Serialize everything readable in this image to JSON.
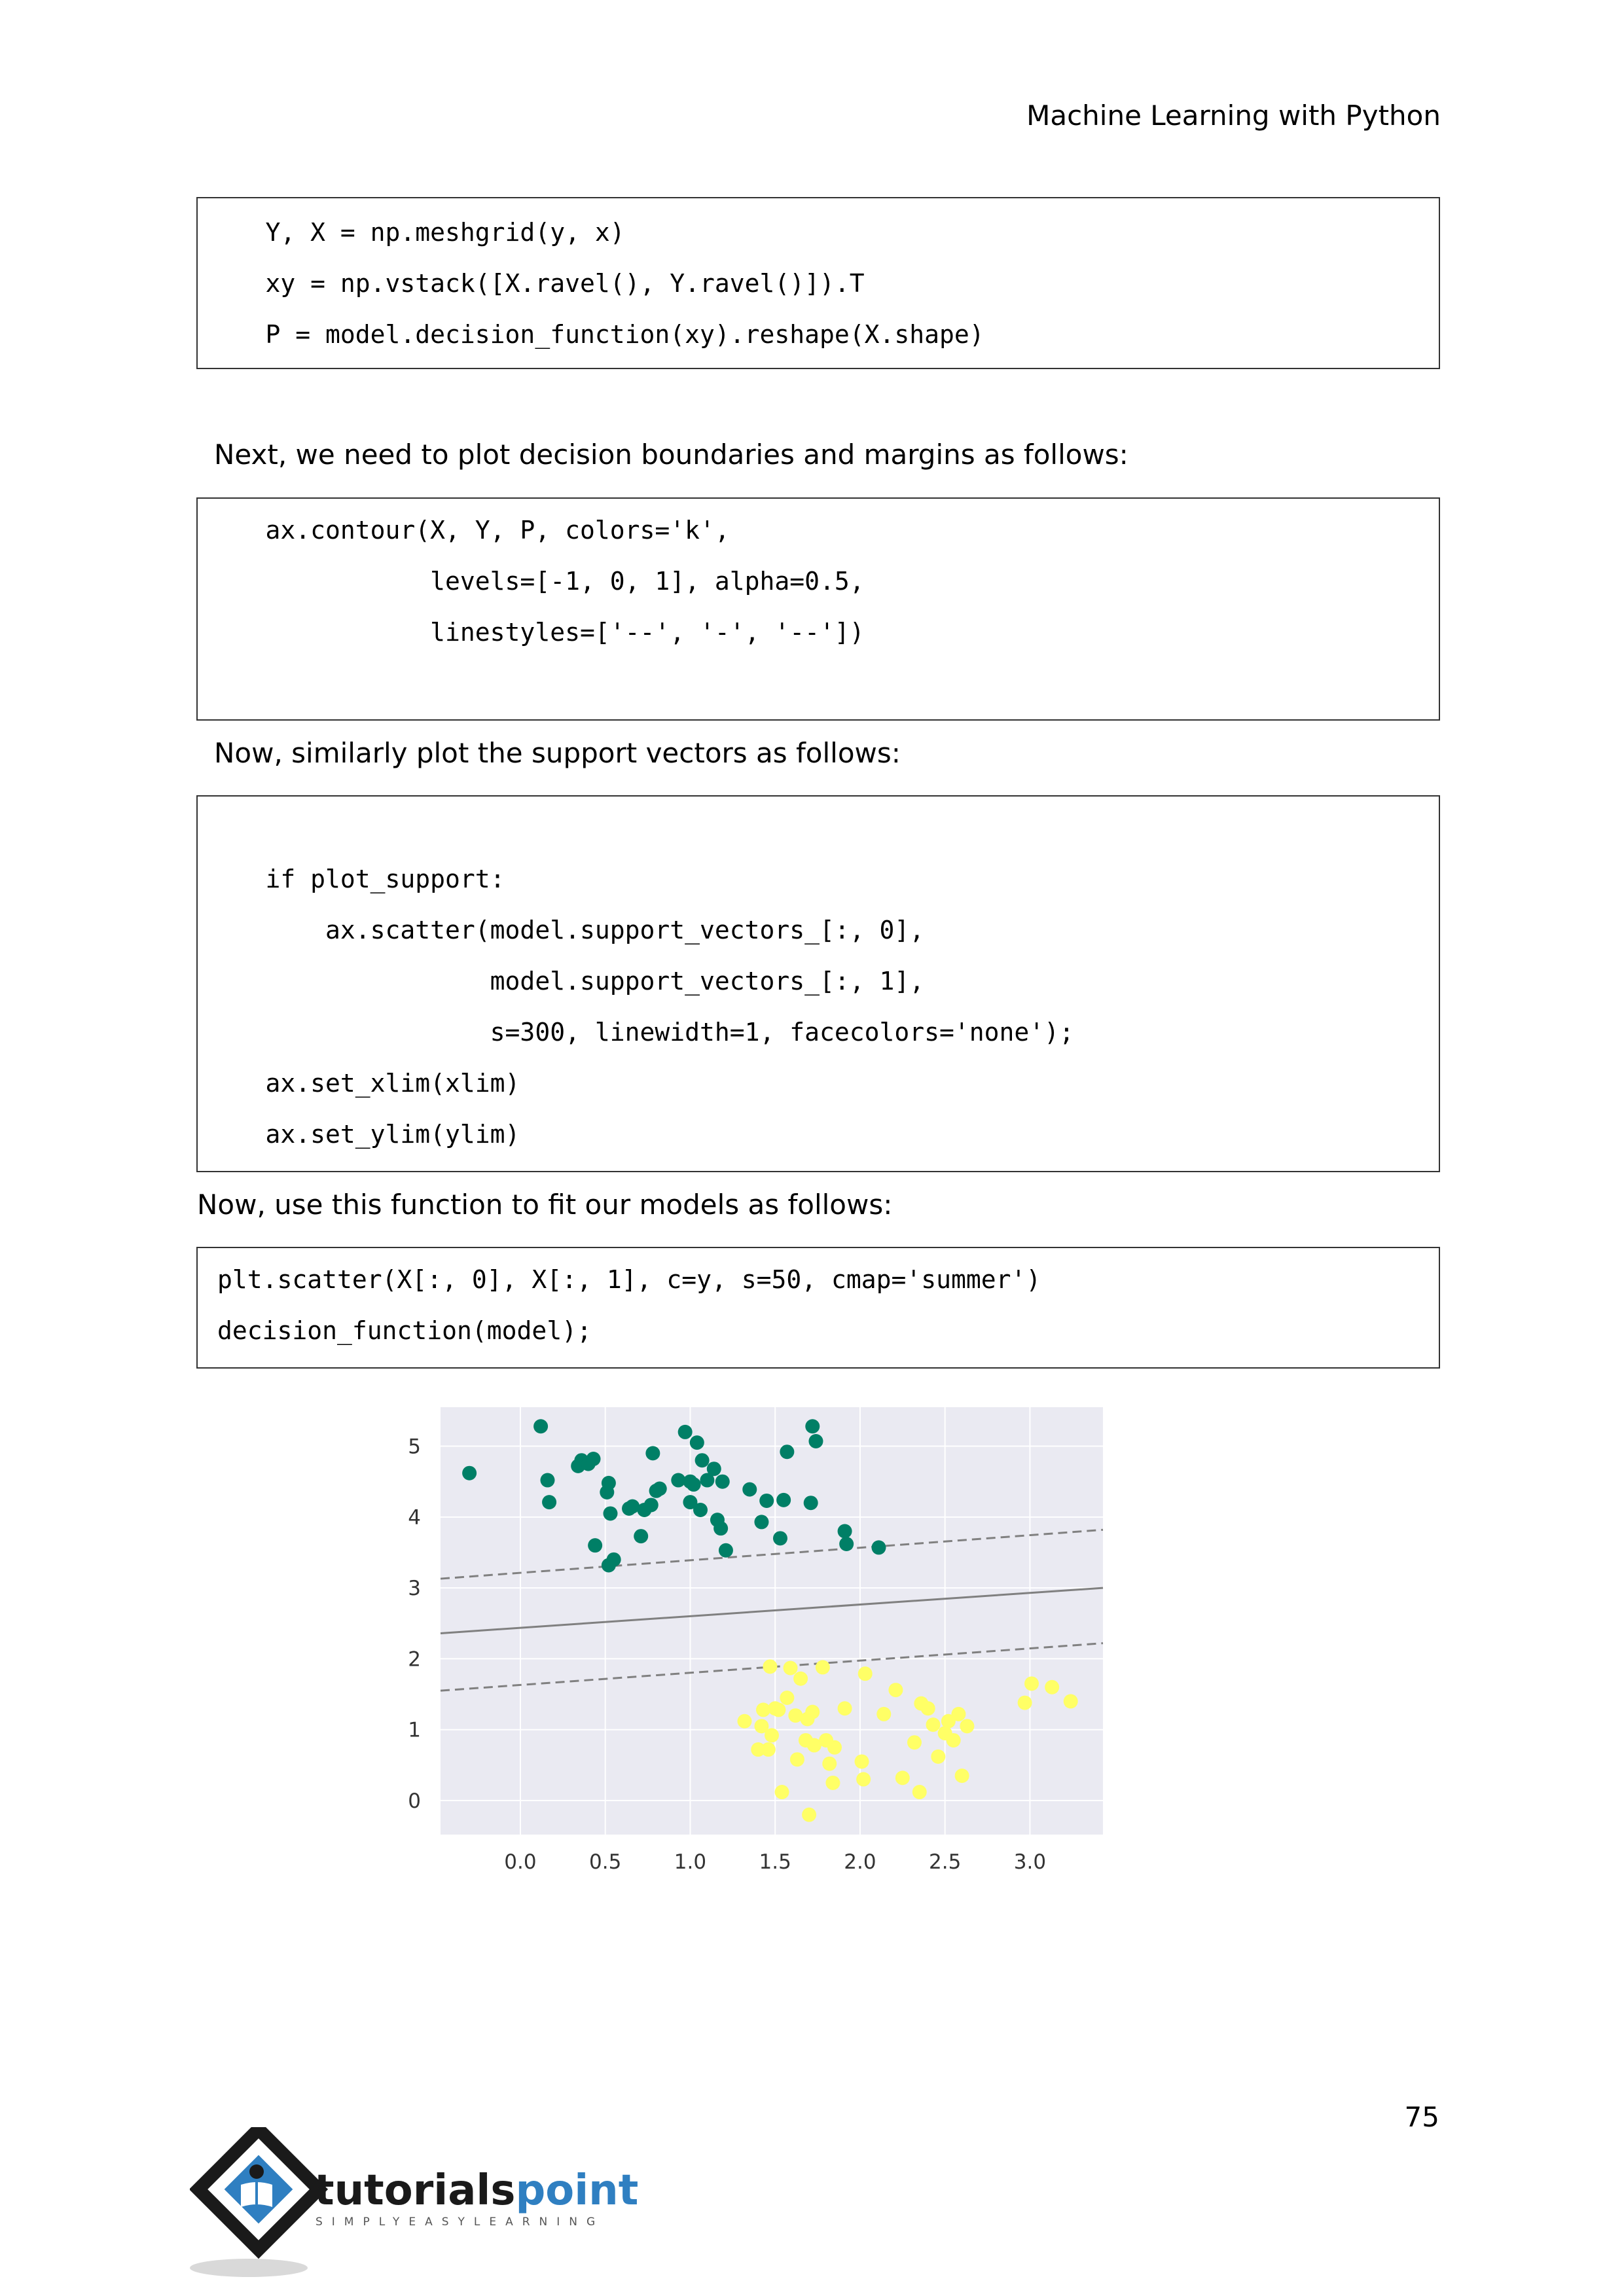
{
  "header": {
    "title": "Machine Learning with Python"
  },
  "blocks": {
    "code1": [
      "    Y, X = np.meshgrid(y, x)",
      "    xy = np.vstack([X.ravel(), Y.ravel()]).T",
      "    P = model.decision_function(xy).reshape(X.shape)"
    ],
    "para1": "Next, we need to plot decision boundaries and margins as follows:",
    "code2": [
      "    ax.contour(X, Y, P, colors='k',",
      "               levels=[-1, 0, 1], alpha=0.5,",
      "               linestyles=['--', '-', '--'])"
    ],
    "para2": "Now, similarly plot the support vectors as follows:",
    "code3": [
      "    if plot_support:",
      "        ax.scatter(model.support_vectors_[:, 0],",
      "                   model.support_vectors_[:, 1],",
      "                   s=300, linewidth=1, facecolors='none');",
      "    ax.set_xlim(xlim)",
      "    ax.set_ylim(ylim)"
    ],
    "para3": "Now, use this function to fit our models as follows:",
    "code4": [
      "plt.scatter(X[:, 0], X[:, 1], c=y, s=50, cmap='summer')",
      "decision_function(model);"
    ]
  },
  "chart_data": {
    "type": "scatter",
    "title": "",
    "xlabel": "",
    "ylabel": "",
    "xlim": [
      -0.47,
      3.43
    ],
    "ylim": [
      -0.48,
      5.55
    ],
    "xticks": [
      "0.0",
      "0.5",
      "1.0",
      "1.5",
      "2.0",
      "2.5",
      "3.0"
    ],
    "yticks": [
      "0",
      "1",
      "2",
      "3",
      "4",
      "5"
    ],
    "grid": true,
    "background": "#eaeaf2",
    "lines": [
      {
        "style": "dashed",
        "points": [
          [
            -0.47,
            3.13
          ],
          [
            3.43,
            3.82
          ]
        ]
      },
      {
        "style": "solid",
        "points": [
          [
            -0.47,
            2.36
          ],
          [
            3.43,
            3.0
          ]
        ]
      },
      {
        "style": "dashed",
        "points": [
          [
            -0.47,
            1.55
          ],
          [
            3.43,
            2.22
          ]
        ]
      }
    ],
    "series": [
      {
        "color": "#007f66",
        "points": [
          [
            -0.3,
            4.62
          ],
          [
            0.12,
            5.28
          ],
          [
            0.16,
            4.52
          ],
          [
            0.17,
            4.21
          ],
          [
            0.34,
            4.72
          ],
          [
            0.36,
            4.8
          ],
          [
            0.4,
            4.75
          ],
          [
            0.43,
            4.82
          ],
          [
            0.44,
            3.6
          ],
          [
            0.52,
            4.48
          ],
          [
            0.51,
            4.35
          ],
          [
            0.53,
            4.05
          ],
          [
            0.55,
            3.4
          ],
          [
            0.52,
            3.32
          ],
          [
            0.64,
            4.12
          ],
          [
            0.66,
            4.15
          ],
          [
            0.71,
            3.73
          ],
          [
            0.73,
            4.1
          ],
          [
            0.77,
            4.17
          ],
          [
            0.78,
            4.9
          ],
          [
            0.8,
            4.37
          ],
          [
            0.82,
            4.4
          ],
          [
            0.93,
            4.52
          ],
          [
            0.97,
            5.2
          ],
          [
            1.0,
            4.5
          ],
          [
            1.0,
            4.21
          ],
          [
            1.02,
            4.46
          ],
          [
            1.04,
            5.05
          ],
          [
            1.06,
            4.1
          ],
          [
            1.07,
            4.8
          ],
          [
            1.1,
            4.52
          ],
          [
            1.14,
            4.68
          ],
          [
            1.16,
            3.96
          ],
          [
            1.18,
            3.84
          ],
          [
            1.19,
            4.5
          ],
          [
            1.21,
            3.53
          ],
          [
            1.35,
            4.39
          ],
          [
            1.42,
            3.93
          ],
          [
            1.45,
            4.23
          ],
          [
            1.53,
            3.7
          ],
          [
            1.55,
            4.24
          ],
          [
            1.57,
            4.92
          ],
          [
            1.71,
            4.2
          ],
          [
            1.72,
            5.28
          ],
          [
            1.74,
            5.07
          ],
          [
            1.91,
            3.8
          ],
          [
            1.92,
            3.62
          ],
          [
            2.11,
            3.57
          ]
        ]
      },
      {
        "color": "#ffff66",
        "points": [
          [
            1.32,
            1.12
          ],
          [
            1.4,
            0.72
          ],
          [
            1.42,
            1.05
          ],
          [
            1.43,
            1.28
          ],
          [
            1.46,
            0.72
          ],
          [
            1.47,
            1.89
          ],
          [
            1.48,
            0.92
          ],
          [
            1.5,
            1.3
          ],
          [
            1.52,
            1.28
          ],
          [
            1.54,
            0.12
          ],
          [
            1.57,
            1.45
          ],
          [
            1.59,
            1.87
          ],
          [
            1.62,
            1.2
          ],
          [
            1.63,
            0.58
          ],
          [
            1.65,
            1.72
          ],
          [
            1.68,
            0.85
          ],
          [
            1.69,
            1.15
          ],
          [
            1.7,
            -0.2
          ],
          [
            1.72,
            1.25
          ],
          [
            1.73,
            0.78
          ],
          [
            1.78,
            1.88
          ],
          [
            1.8,
            0.85
          ],
          [
            1.82,
            0.52
          ],
          [
            1.84,
            0.25
          ],
          [
            1.85,
            0.75
          ],
          [
            1.91,
            1.3
          ],
          [
            2.01,
            0.55
          ],
          [
            2.02,
            0.3
          ],
          [
            2.03,
            1.79
          ],
          [
            2.14,
            1.22
          ],
          [
            2.21,
            1.56
          ],
          [
            2.25,
            0.32
          ],
          [
            2.32,
            0.82
          ],
          [
            2.35,
            0.12
          ],
          [
            2.36,
            1.37
          ],
          [
            2.4,
            1.3
          ],
          [
            2.43,
            1.07
          ],
          [
            2.46,
            0.62
          ],
          [
            2.5,
            0.95
          ],
          [
            2.52,
            1.12
          ],
          [
            2.55,
            0.85
          ],
          [
            2.58,
            1.22
          ],
          [
            2.6,
            0.35
          ],
          [
            2.63,
            1.05
          ],
          [
            2.97,
            1.38
          ],
          [
            3.01,
            1.65
          ],
          [
            3.13,
            1.6
          ],
          [
            3.24,
            1.4
          ]
        ]
      }
    ]
  },
  "footer": {
    "page_number": "75",
    "logo_text": "tutorialspoint",
    "logo_tagline": "SIMPLYEASYLEARNING"
  }
}
